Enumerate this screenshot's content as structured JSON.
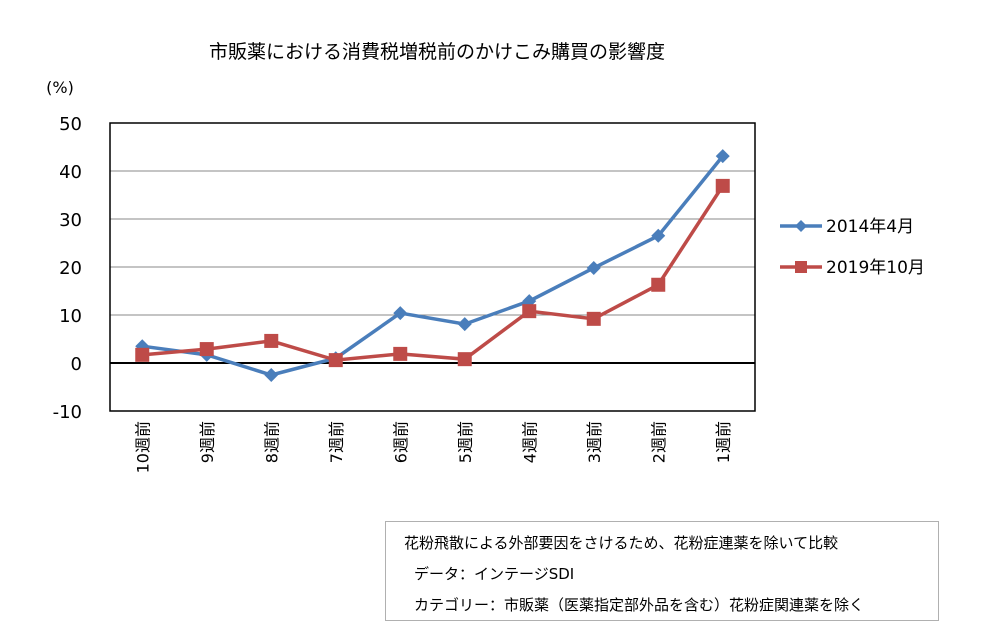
{
  "chart_data": {
    "type": "line",
    "title": "市販薬における消費税増税前のかけこみ購買の影響度",
    "ylabel": "(%)",
    "xlabel": "",
    "ylim": [
      -10,
      50
    ],
    "yticks": [
      50,
      40,
      30,
      20,
      10,
      0,
      -10
    ],
    "grid": true,
    "legend_position": "right",
    "categories": [
      "10週前",
      "9週前",
      "8週前",
      "7週前",
      "6週前",
      "5週前",
      "4週前",
      "3週前",
      "2週前",
      "1週前"
    ],
    "series": [
      {
        "name": "2014年4月",
        "color": "#4a7ebb",
        "marker": "diamond",
        "values": [
          3.5,
          1.7,
          -2.5,
          1.0,
          10.4,
          8.1,
          12.9,
          19.8,
          26.5,
          43.1
        ]
      },
      {
        "name": "2019年10月",
        "color": "#be4b48",
        "marker": "square",
        "values": [
          1.7,
          2.9,
          4.6,
          0.6,
          1.9,
          0.8,
          10.8,
          9.2,
          16.3,
          36.9
        ]
      }
    ]
  },
  "note": {
    "line1": "花粉飛散による外部要因をさけるため、花粉症連薬を除いて比較",
    "line2": "データ：インテージSDI",
    "line3": "カテゴリー：市販薬（医薬指定部外品を含む）花粉症関連薬を除く"
  }
}
